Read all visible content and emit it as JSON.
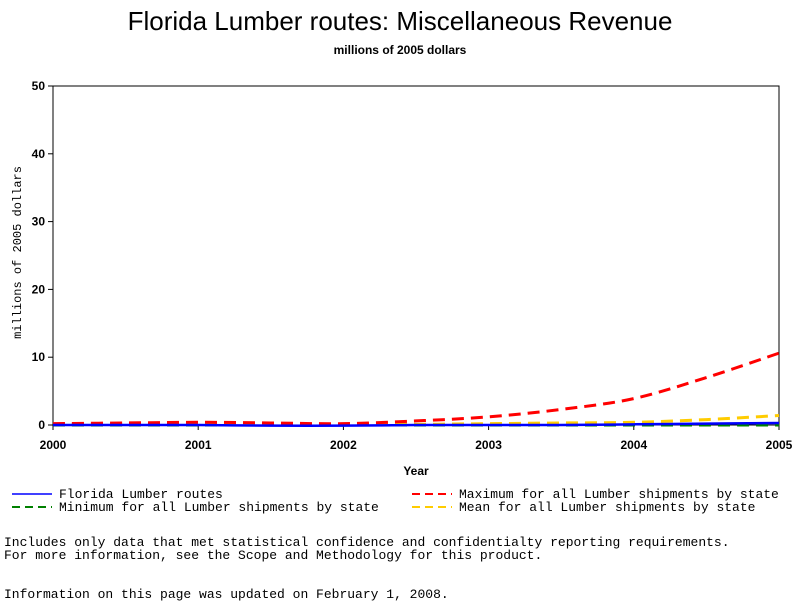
{
  "chart_data": {
    "type": "line",
    "title": "Florida Lumber routes: Miscellaneous Revenue",
    "subtitle": "millions of 2005 dollars",
    "xlabel": "Year",
    "ylabel": "millions of 2005 dollars",
    "xlim": [
      2000,
      2005
    ],
    "ylim": [
      0,
      50
    ],
    "xticks": [
      "2000",
      "2001",
      "2002",
      "2003",
      "2004",
      "2005"
    ],
    "yticks": [
      "0",
      "10",
      "20",
      "30",
      "40",
      "50"
    ],
    "grid": false,
    "legend_position": "bottom",
    "x": [
      2000,
      2000.5,
      2001,
      2001.5,
      2002,
      2002.5,
      2003,
      2003.5,
      2004,
      2004.5,
      2005
    ],
    "series": [
      {
        "name": "Florida Lumber routes",
        "color": "#0000ff",
        "dash": "solid",
        "values": [
          0,
          0,
          0,
          -0.1,
          -0.1,
          0,
          0,
          0,
          0.1,
          0.2,
          0.3
        ]
      },
      {
        "name": "Maximum for all Lumber shipments by state",
        "color": "#ff0000",
        "dash": "dashed",
        "values": [
          0.2,
          0.3,
          0.4,
          0.3,
          0.2,
          0.6,
          1.2,
          2.3,
          3.9,
          7.0,
          10.6
        ]
      },
      {
        "name": "Minimum for all Lumber shipments by state",
        "color": "#008000",
        "dash": "dashed",
        "values": [
          0,
          0,
          0,
          0,
          0,
          0,
          0,
          0,
          0,
          0,
          0
        ]
      },
      {
        "name": "Mean for all Lumber shipments by state",
        "color": "#ffcc00",
        "dash": "dashed",
        "values": [
          0.1,
          0.1,
          0.2,
          0.1,
          0.1,
          0.1,
          0.2,
          0.3,
          0.4,
          0.8,
          1.4
        ]
      }
    ]
  },
  "notes": {
    "line1": "Includes only data that met statistical confidence and confidentialty reporting requirements.",
    "line2": "For more information, see the Scope and Methodology for this product.",
    "updated": "Information on this page was updated on February 1, 2008."
  }
}
